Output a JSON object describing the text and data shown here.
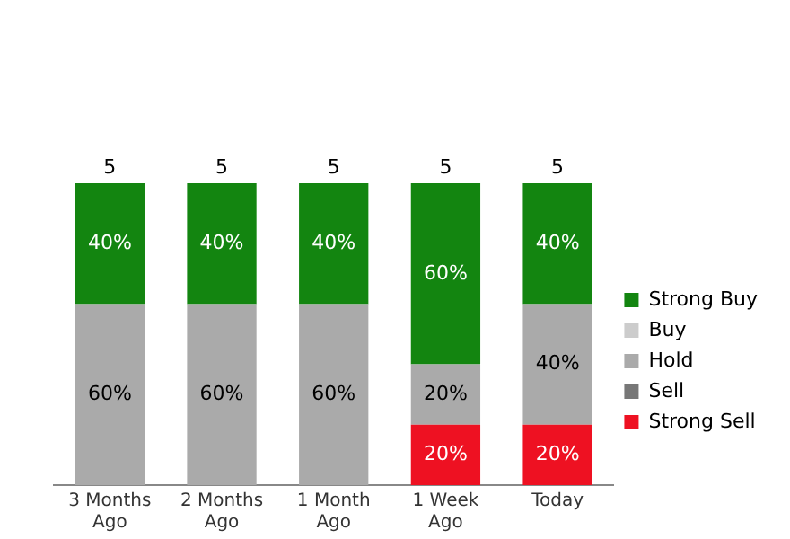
{
  "chart_data": {
    "type": "bar",
    "stacked": true,
    "categories": [
      "3 Months Ago",
      "2 Months Ago",
      "1 Month Ago",
      "1 Week Ago",
      "Today"
    ],
    "series": [
      {
        "name": "Strong Sell",
        "color": "#ee1122",
        "values": [
          null,
          null,
          null,
          20,
          20
        ],
        "value_labels": [
          null,
          null,
          null,
          "20%",
          "20%"
        ]
      },
      {
        "name": "Sell",
        "color": "#777777",
        "values": [
          null,
          null,
          null,
          null,
          null
        ],
        "value_labels": [
          null,
          null,
          null,
          null,
          null
        ]
      },
      {
        "name": "Hold",
        "color": "#aaaaaa",
        "values": [
          60,
          60,
          60,
          20,
          40
        ],
        "value_labels": [
          "60%",
          "60%",
          "60%",
          "20%",
          "40%"
        ]
      },
      {
        "name": "Buy",
        "color": "#cccccc",
        "values": [
          null,
          null,
          null,
          null,
          null
        ],
        "value_labels": [
          null,
          null,
          null,
          null,
          null
        ]
      },
      {
        "name": "Strong Buy",
        "color": "#138510",
        "values": [
          40,
          40,
          40,
          60,
          40
        ],
        "value_labels": [
          "40%",
          "40%",
          "40%",
          "60%",
          "40%"
        ]
      }
    ],
    "annotations": [
      {
        "text": "5",
        "x": "3 Months Ago",
        "y": 100
      },
      {
        "text": "5",
        "x": "2 Months Ago",
        "y": 100
      },
      {
        "text": "5",
        "x": "1 Month Ago",
        "y": 100
      },
      {
        "text": "5",
        "x": "1 Week Ago",
        "y": 100
      },
      {
        "text": "5",
        "x": "Today",
        "y": 100
      }
    ],
    "tick_labels": "x",
    "grid": false,
    "legend": "right"
  }
}
